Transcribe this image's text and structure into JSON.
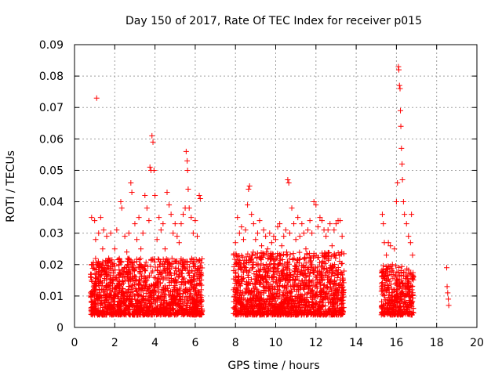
{
  "chart_data": {
    "type": "scatter",
    "title": "Day 150 of 2017, Rate Of TEC Index for receiver p015",
    "xlabel": "GPS time / hours",
    "ylabel": "ROTI / TECUs",
    "xlim": [
      0,
      20
    ],
    "ylim": [
      0,
      0.09
    ],
    "x_ticks": [
      0,
      2,
      4,
      6,
      8,
      10,
      12,
      14,
      16,
      18,
      20
    ],
    "x_tick_labels": [
      "0",
      "2",
      "4",
      "6",
      "8",
      "10",
      "12",
      "14",
      "16",
      "18",
      "20"
    ],
    "y_ticks": [
      0,
      0.01,
      0.02,
      0.03,
      0.04,
      0.05,
      0.06,
      0.07,
      0.08,
      0.09
    ],
    "y_tick_labels": [
      "0",
      "0.01",
      "0.02",
      "0.03",
      "0.04",
      "0.05",
      "0.06",
      "0.07",
      "0.08",
      "0.09"
    ],
    "grid": true,
    "marker": "+",
    "marker_color": "#ff0000",
    "series": [
      {
        "name": "p015",
        "points": [
          [
            0.8,
            0.011
          ],
          [
            0.85,
            0.035
          ],
          [
            0.9,
            0.02
          ],
          [
            0.95,
            0.013
          ],
          [
            1.0,
            0.034
          ],
          [
            1.05,
            0.028
          ],
          [
            1.1,
            0.073
          ],
          [
            1.15,
            0.009
          ],
          [
            1.2,
            0.03
          ],
          [
            1.25,
            0.016
          ],
          [
            1.3,
            0.035
          ],
          [
            1.35,
            0.012
          ],
          [
            1.4,
            0.025
          ],
          [
            1.45,
            0.031
          ],
          [
            1.5,
            0.018
          ],
          [
            1.55,
            0.01
          ],
          [
            1.6,
            0.029
          ],
          [
            1.7,
            0.022
          ],
          [
            1.8,
            0.03
          ],
          [
            1.9,
            0.014
          ],
          [
            2.0,
            0.025
          ],
          [
            2.1,
            0.031
          ],
          [
            2.2,
            0.02
          ],
          [
            2.3,
            0.04
          ],
          [
            2.35,
            0.038
          ],
          [
            2.4,
            0.016
          ],
          [
            2.5,
            0.029
          ],
          [
            2.6,
            0.024
          ],
          [
            2.7,
            0.03
          ],
          [
            2.8,
            0.046
          ],
          [
            2.85,
            0.043
          ],
          [
            2.9,
            0.019
          ],
          [
            3.0,
            0.033
          ],
          [
            3.1,
            0.028
          ],
          [
            3.2,
            0.035
          ],
          [
            3.3,
            0.025
          ],
          [
            3.4,
            0.03
          ],
          [
            3.5,
            0.042
          ],
          [
            3.6,
            0.038
          ],
          [
            3.7,
            0.034
          ],
          [
            3.75,
            0.051
          ],
          [
            3.8,
            0.05
          ],
          [
            3.85,
            0.061
          ],
          [
            3.9,
            0.059
          ],
          [
            3.95,
            0.05
          ],
          [
            4.0,
            0.042
          ],
          [
            4.1,
            0.028
          ],
          [
            4.2,
            0.035
          ],
          [
            4.3,
            0.031
          ],
          [
            4.4,
            0.033
          ],
          [
            4.5,
            0.025
          ],
          [
            4.6,
            0.043
          ],
          [
            4.7,
            0.039
          ],
          [
            4.8,
            0.036
          ],
          [
            4.9,
            0.03
          ],
          [
            5.0,
            0.033
          ],
          [
            5.1,
            0.029
          ],
          [
            5.2,
            0.027
          ],
          [
            5.3,
            0.033
          ],
          [
            5.4,
            0.036
          ],
          [
            5.5,
            0.038
          ],
          [
            5.55,
            0.056
          ],
          [
            5.6,
            0.053
          ],
          [
            5.62,
            0.05
          ],
          [
            5.65,
            0.044
          ],
          [
            5.7,
            0.038
          ],
          [
            5.8,
            0.035
          ],
          [
            5.9,
            0.03
          ],
          [
            6.0,
            0.034
          ],
          [
            6.1,
            0.029
          ],
          [
            6.2,
            0.042
          ],
          [
            6.25,
            0.041
          ],
          [
            6.3,
            0.017
          ],
          [
            8.0,
            0.027
          ],
          [
            8.1,
            0.035
          ],
          [
            8.2,
            0.03
          ],
          [
            8.3,
            0.032
          ],
          [
            8.4,
            0.028
          ],
          [
            8.5,
            0.031
          ],
          [
            8.6,
            0.039
          ],
          [
            8.65,
            0.044
          ],
          [
            8.7,
            0.045
          ],
          [
            8.8,
            0.036
          ],
          [
            8.9,
            0.033
          ],
          [
            9.0,
            0.028
          ],
          [
            9.1,
            0.03
          ],
          [
            9.2,
            0.034
          ],
          [
            9.3,
            0.026
          ],
          [
            9.4,
            0.031
          ],
          [
            9.5,
            0.029
          ],
          [
            9.6,
            0.025
          ],
          [
            9.7,
            0.03
          ],
          [
            9.8,
            0.027
          ],
          [
            9.9,
            0.029
          ],
          [
            10.0,
            0.028
          ],
          [
            10.1,
            0.032
          ],
          [
            10.2,
            0.033
          ],
          [
            10.3,
            0.026
          ],
          [
            10.4,
            0.029
          ],
          [
            10.5,
            0.031
          ],
          [
            10.6,
            0.047
          ],
          [
            10.65,
            0.046
          ],
          [
            10.7,
            0.03
          ],
          [
            10.8,
            0.038
          ],
          [
            10.9,
            0.033
          ],
          [
            11.0,
            0.028
          ],
          [
            11.1,
            0.035
          ],
          [
            11.2,
            0.029
          ],
          [
            11.3,
            0.033
          ],
          [
            11.4,
            0.03
          ],
          [
            11.5,
            0.025
          ],
          [
            11.6,
            0.031
          ],
          [
            11.7,
            0.034
          ],
          [
            11.8,
            0.03
          ],
          [
            11.9,
            0.04
          ],
          [
            12.0,
            0.039
          ],
          [
            12.1,
            0.032
          ],
          [
            12.2,
            0.035
          ],
          [
            12.3,
            0.034
          ],
          [
            12.4,
            0.031
          ],
          [
            12.5,
            0.029
          ],
          [
            12.6,
            0.031
          ],
          [
            12.7,
            0.033
          ],
          [
            12.8,
            0.026
          ],
          [
            12.9,
            0.031
          ],
          [
            13.0,
            0.033
          ],
          [
            13.1,
            0.034
          ],
          [
            13.2,
            0.034
          ],
          [
            13.3,
            0.029
          ],
          [
            15.3,
            0.036
          ],
          [
            15.35,
            0.033
          ],
          [
            15.4,
            0.027
          ],
          [
            15.5,
            0.023
          ],
          [
            15.6,
            0.027
          ],
          [
            15.7,
            0.026
          ],
          [
            15.8,
            0.02
          ],
          [
            15.9,
            0.025
          ],
          [
            16.0,
            0.04
          ],
          [
            16.05,
            0.046
          ],
          [
            16.1,
            0.083
          ],
          [
            16.12,
            0.082
          ],
          [
            16.15,
            0.077
          ],
          [
            16.18,
            0.076
          ],
          [
            16.2,
            0.069
          ],
          [
            16.22,
            0.064
          ],
          [
            16.25,
            0.057
          ],
          [
            16.28,
            0.052
          ],
          [
            16.3,
            0.047
          ],
          [
            16.35,
            0.04
          ],
          [
            16.4,
            0.036
          ],
          [
            16.5,
            0.033
          ],
          [
            16.6,
            0.029
          ],
          [
            16.7,
            0.027
          ],
          [
            16.75,
            0.036
          ],
          [
            16.8,
            0.023
          ],
          [
            18.5,
            0.019
          ],
          [
            18.52,
            0.013
          ],
          [
            18.55,
            0.011
          ],
          [
            18.58,
            0.009
          ],
          [
            18.6,
            0.007
          ]
        ],
        "bands": [
          {
            "x_from": 0.8,
            "x_to": 6.35,
            "y_from": 0.004,
            "y_to": 0.022,
            "count": 1500
          },
          {
            "x_from": 7.9,
            "x_to": 13.4,
            "y_from": 0.004,
            "y_to": 0.024,
            "count": 1500
          },
          {
            "x_from": 15.25,
            "x_to": 16.85,
            "y_from": 0.004,
            "y_to": 0.02,
            "count": 400
          }
        ]
      }
    ]
  }
}
